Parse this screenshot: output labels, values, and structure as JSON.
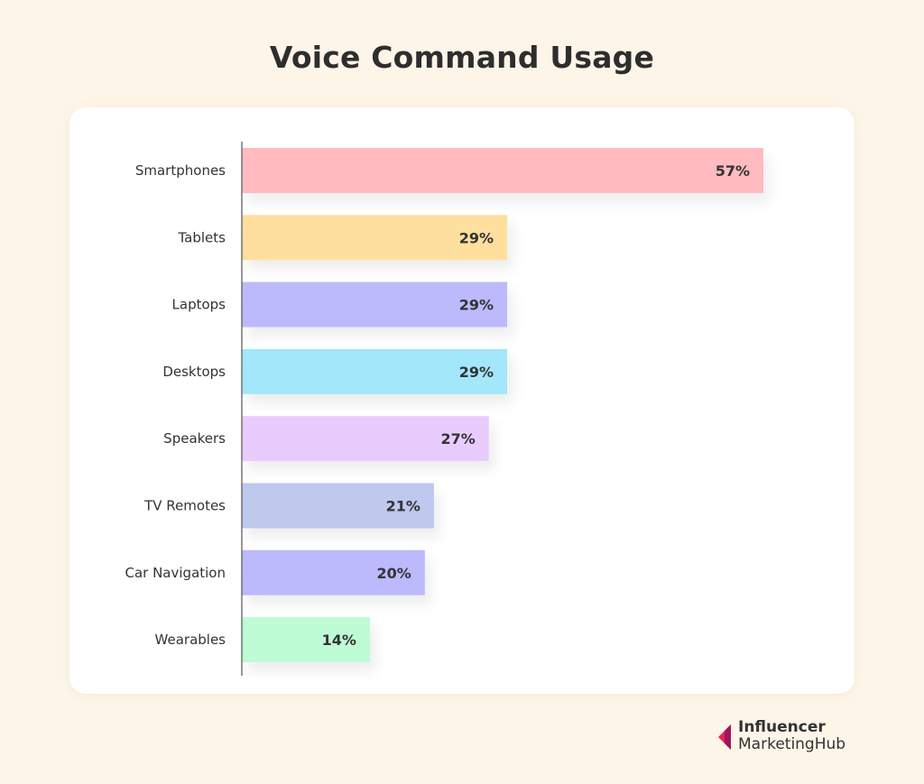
{
  "title": "Voice Command Usage",
  "chart_data": {
    "type": "bar",
    "orientation": "horizontal",
    "title": "Voice Command Usage",
    "categories": [
      "Smartphones",
      "Tablets",
      "Laptops",
      "Desktops",
      "Speakers",
      "TV Remotes",
      "Car Navigation",
      "Wearables"
    ],
    "values": [
      57,
      29,
      29,
      29,
      27,
      21,
      20,
      14
    ],
    "value_labels": [
      "57%",
      "29%",
      "29%",
      "29%",
      "27%",
      "21%",
      "20%",
      "14%"
    ],
    "colors": [
      "#ffbbc0",
      "#fedf9e",
      "#bcb9fd",
      "#a3e7fa",
      "#e8ccfe",
      "#bfc8ed",
      "#bcb9fd",
      "#bdfcd4"
    ],
    "unit": "%",
    "xlim": [
      0,
      57
    ],
    "grid": false,
    "legend": "none"
  },
  "logo": {
    "line1": "Influencer",
    "line2": "MarketingHub",
    "colors": [
      "#e8245a",
      "#a0155c"
    ]
  }
}
